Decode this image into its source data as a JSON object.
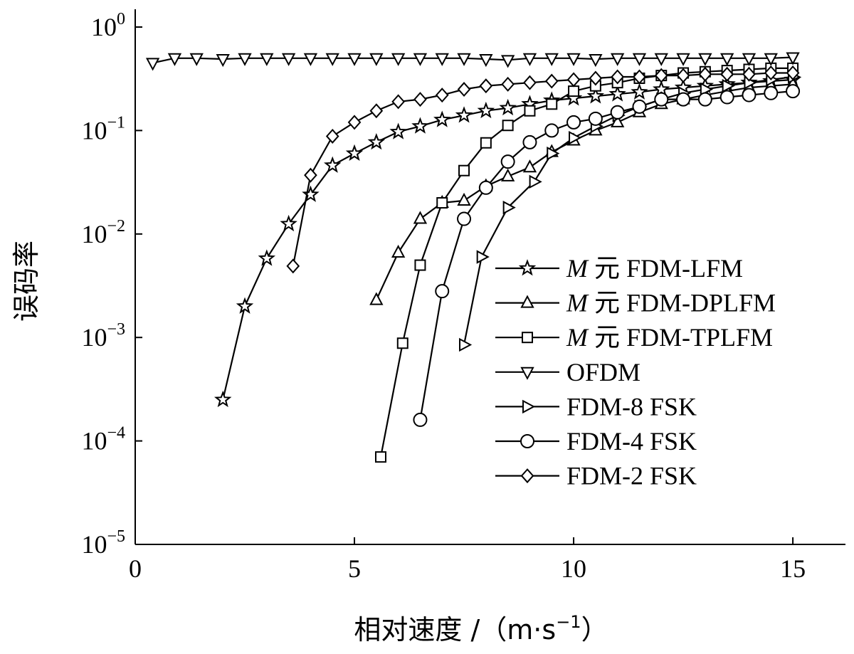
{
  "chart_data": {
    "type": "line",
    "xlabel": "相对速度 /（m·s",
    "xlabel_exp": "−1",
    "xlabel_close": "）",
    "ylabel": "误码率",
    "xlim": [
      0,
      16.2
    ],
    "ylim_exp": [
      -5,
      0
    ],
    "yscale": "log",
    "xticks": [
      {
        "value": 0,
        "label": "0"
      },
      {
        "value": 5,
        "label": "5"
      },
      {
        "value": 10,
        "label": "10"
      },
      {
        "value": 15,
        "label": "15"
      }
    ],
    "yticks": [
      {
        "exp": 0,
        "base": "10",
        "sup": "0"
      },
      {
        "exp": -1,
        "base": "10",
        "sup": "−1"
      },
      {
        "exp": -2,
        "base": "10",
        "sup": "−2"
      },
      {
        "exp": -3,
        "base": "10",
        "sup": "−3"
      },
      {
        "exp": -4,
        "base": "10",
        "sup": "−4"
      },
      {
        "exp": -5,
        "base": "10",
        "sup": "−5"
      }
    ],
    "legend_position": "right",
    "series": [
      {
        "name_italic": "M",
        "name_rest": " 元 FDM-LFM",
        "marker": "star",
        "x": [
          2.0,
          2.5,
          3.0,
          3.5,
          4.0,
          4.5,
          5.0,
          5.5,
          6.0,
          6.5,
          7.0,
          7.5,
          8.0,
          8.5,
          9.0,
          9.5,
          10.0,
          10.5,
          11.0,
          11.5,
          12.0,
          12.5,
          13.0,
          13.5,
          14.0,
          14.5,
          15.0
        ],
        "y": [
          0.00025,
          0.002,
          0.0058,
          0.0125,
          0.024,
          0.046,
          0.06,
          0.077,
          0.097,
          0.11,
          0.127,
          0.14,
          0.155,
          0.165,
          0.18,
          0.195,
          0.205,
          0.215,
          0.225,
          0.235,
          0.25,
          0.26,
          0.27,
          0.28,
          0.29,
          0.3,
          0.31
        ]
      },
      {
        "name_italic": "M",
        "name_rest": " 元 FDM-DPLFM",
        "marker": "triangle-up",
        "x": [
          5.5,
          6.0,
          6.5,
          7.0,
          7.5,
          8.0,
          8.5,
          9.0,
          9.5,
          10.0,
          10.5,
          11.0,
          11.5,
          12.0,
          12.5,
          13.0,
          13.5,
          14.0,
          14.5,
          15.0
        ],
        "y": [
          0.0023,
          0.0066,
          0.014,
          0.02,
          0.021,
          0.029,
          0.036,
          0.044,
          0.062,
          0.08,
          0.1,
          0.12,
          0.15,
          0.18,
          0.2,
          0.22,
          0.24,
          0.26,
          0.27,
          0.28
        ]
      },
      {
        "name_italic": "M",
        "name_rest": " 元 FDM-TPLFM",
        "marker": "square",
        "x": [
          5.6,
          6.1,
          6.5,
          7.0,
          7.5,
          8.0,
          8.5,
          9.0,
          9.5,
          10.0,
          10.5,
          11.0,
          11.5,
          12.0,
          12.5,
          13.0,
          13.5,
          14.0,
          14.5,
          15.0
        ],
        "y": [
          7e-05,
          0.00088,
          0.005,
          0.02,
          0.041,
          0.076,
          0.112,
          0.155,
          0.18,
          0.24,
          0.27,
          0.29,
          0.32,
          0.34,
          0.36,
          0.37,
          0.38,
          0.39,
          0.4,
          0.4
        ]
      },
      {
        "name_italic": "",
        "name_rest": "OFDM",
        "marker": "triangle-down",
        "x": [
          0.4,
          0.9,
          1.4,
          2.0,
          2.5,
          3.0,
          3.5,
          4.0,
          4.5,
          5.0,
          5.5,
          6.0,
          6.5,
          7.0,
          7.5,
          8.0,
          8.5,
          9.0,
          9.5,
          10.0,
          10.5,
          11.0,
          11.5,
          12.0,
          12.5,
          13.0,
          13.5,
          14.0,
          14.5,
          15.0
        ],
        "y": [
          0.45,
          0.5,
          0.5,
          0.49,
          0.5,
          0.5,
          0.5,
          0.5,
          0.5,
          0.5,
          0.5,
          0.5,
          0.5,
          0.5,
          0.5,
          0.49,
          0.48,
          0.5,
          0.5,
          0.5,
          0.49,
          0.5,
          0.5,
          0.5,
          0.5,
          0.5,
          0.5,
          0.5,
          0.5,
          0.51
        ]
      },
      {
        "name_italic": "",
        "name_rest": "FDM-8 FSK",
        "marker": "triangle-right",
        "x": [
          7.5,
          7.9,
          8.5,
          9.1,
          9.5,
          10.0,
          10.5,
          11.0,
          11.5,
          12.0,
          12.5,
          13.0,
          13.5,
          14.0,
          14.5,
          15.0
        ],
        "y": [
          0.00085,
          0.006,
          0.018,
          0.032,
          0.06,
          0.085,
          0.11,
          0.14,
          0.17,
          0.2,
          0.23,
          0.25,
          0.27,
          0.29,
          0.31,
          0.33
        ]
      },
      {
        "name_italic": "",
        "name_rest": "FDM-4 FSK",
        "marker": "circle",
        "x": [
          6.5,
          7.0,
          7.5,
          8.0,
          8.5,
          9.0,
          9.5,
          10.0,
          10.5,
          11.0,
          11.5,
          12.0,
          12.5,
          13.0,
          13.5,
          14.0,
          14.5,
          15.0
        ],
        "y": [
          0.00016,
          0.0028,
          0.014,
          0.028,
          0.05,
          0.077,
          0.1,
          0.12,
          0.13,
          0.15,
          0.17,
          0.2,
          0.2,
          0.2,
          0.21,
          0.22,
          0.23,
          0.24
        ]
      },
      {
        "name_italic": "",
        "name_rest": "FDM-2 FSK",
        "marker": "diamond",
        "x": [
          3.6,
          4.0,
          4.5,
          5.0,
          5.5,
          6.0,
          6.5,
          7.0,
          7.5,
          8.0,
          8.5,
          9.0,
          9.5,
          10.0,
          10.5,
          11.0,
          11.5,
          12.0,
          12.5,
          13.0,
          13.5,
          14.0,
          14.5,
          15.0
        ],
        "y": [
          0.0049,
          0.037,
          0.088,
          0.12,
          0.155,
          0.19,
          0.2,
          0.22,
          0.25,
          0.27,
          0.28,
          0.29,
          0.3,
          0.31,
          0.32,
          0.33,
          0.33,
          0.34,
          0.34,
          0.35,
          0.35,
          0.35,
          0.36,
          0.36
        ]
      }
    ]
  }
}
